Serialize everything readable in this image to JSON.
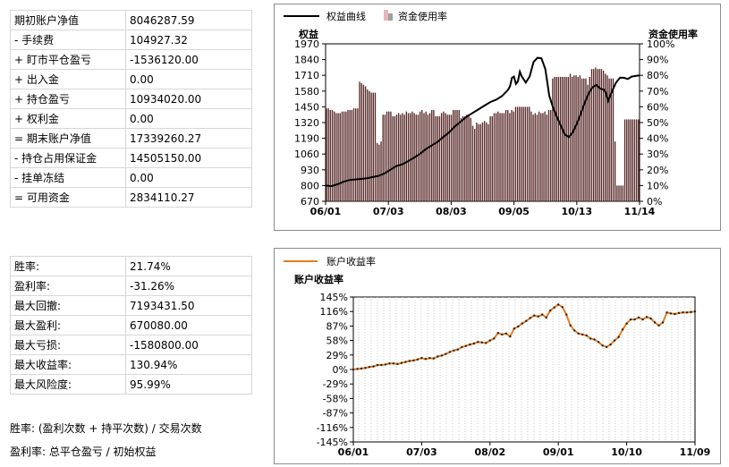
{
  "account_table": [
    {
      "label": "期初账户净值",
      "value": "8046287.59"
    },
    {
      "label": "- 手续费",
      "value": "104927.32"
    },
    {
      "label": "+ 盯市平仓盈亏",
      "value": "-1536120.00"
    },
    {
      "label": "+ 出入金",
      "value": "0.00"
    },
    {
      "label": "+ 持仓盈亏",
      "value": "10934020.00"
    },
    {
      "label": "+ 权利金",
      "value": "0.00"
    },
    {
      "label": "= 期末账户净值",
      "value": "17339260.27"
    },
    {
      "label": "- 持仓占用保证金",
      "value": "14505150.00"
    },
    {
      "label": "- 挂单冻结",
      "value": "0.00"
    },
    {
      "label": "= 可用资金",
      "value": "2834110.27"
    }
  ],
  "stats_table": [
    {
      "label": "胜率:",
      "value": "21.74%"
    },
    {
      "label": "盈利率:",
      "value": "-31.26%"
    },
    {
      "label": "最大回撤:",
      "value": "7193431.50"
    },
    {
      "label": "最大盈利:",
      "value": "670080.00"
    },
    {
      "label": "最大亏损:",
      "value": "-1580800.00"
    },
    {
      "label": "最大收益率:",
      "value": "130.94%"
    },
    {
      "label": "最大风险度:",
      "value": "95.99%"
    }
  ],
  "notes": {
    "win_rate_def": "胜率: (盈利次数 + 持平次数) / 交易次数",
    "profit_rate_def": "盈利率: 总平仓盈亏 / 初始权益"
  },
  "chart_data": [
    {
      "type": "line",
      "legend": [
        "权益曲线",
        "资金使用率"
      ],
      "ylabel": "权益",
      "y2label": "资金使用率",
      "x_ticks": [
        "06/01",
        "07/03",
        "08/03",
        "09/05",
        "10/13",
        "11/14"
      ],
      "y_ticks": [
        "670",
        "800",
        "930",
        "1060",
        "1190",
        "1320",
        "1450",
        "1580",
        "1710",
        "1840",
        "1970"
      ],
      "y_range": [
        670,
        1970
      ],
      "y2_ticks": [
        "0%",
        "10%",
        "20%",
        "30%",
        "40%",
        "50%",
        "60%",
        "70%",
        "80%",
        "90%",
        "100%"
      ],
      "y2_range": [
        0,
        100
      ],
      "series_line": {
        "name": "权益曲线",
        "color": "#000000",
        "points": [
          [
            0,
            800
          ],
          [
            3,
            795
          ],
          [
            6,
            810
          ],
          [
            9,
            830
          ],
          [
            12,
            845
          ],
          [
            15,
            850
          ],
          [
            18,
            855
          ],
          [
            21,
            860
          ],
          [
            24,
            870
          ],
          [
            27,
            880
          ],
          [
            30,
            900
          ],
          [
            33,
            930
          ],
          [
            36,
            960
          ],
          [
            39,
            975
          ],
          [
            42,
            1000
          ],
          [
            45,
            1030
          ],
          [
            48,
            1060
          ],
          [
            51,
            1100
          ],
          [
            54,
            1130
          ],
          [
            57,
            1160
          ],
          [
            60,
            1200
          ],
          [
            63,
            1240
          ],
          [
            66,
            1290
          ],
          [
            69,
            1330
          ],
          [
            72,
            1370
          ],
          [
            75,
            1400
          ],
          [
            78,
            1430
          ],
          [
            81,
            1460
          ],
          [
            84,
            1490
          ],
          [
            87,
            1510
          ],
          [
            90,
            1540
          ],
          [
            93,
            1590
          ],
          [
            94,
            1620
          ],
          [
            95,
            1690
          ],
          [
            96,
            1700
          ],
          [
            97,
            1640
          ],
          [
            98,
            1660
          ],
          [
            99,
            1740
          ],
          [
            100,
            1700
          ],
          [
            102,
            1650
          ],
          [
            104,
            1700
          ],
          [
            106,
            1820
          ],
          [
            108,
            1855
          ],
          [
            110,
            1850
          ],
          [
            112,
            1760
          ],
          [
            114,
            1540
          ],
          [
            116,
            1440
          ],
          [
            118,
            1360
          ],
          [
            120,
            1290
          ],
          [
            122,
            1220
          ],
          [
            124,
            1200
          ],
          [
            126,
            1240
          ],
          [
            128,
            1310
          ],
          [
            130,
            1390
          ],
          [
            132,
            1480
          ],
          [
            134,
            1560
          ],
          [
            136,
            1610
          ],
          [
            138,
            1630
          ],
          [
            140,
            1600
          ],
          [
            142,
            1590
          ],
          [
            143,
            1560
          ],
          [
            144,
            1500
          ],
          [
            146,
            1580
          ],
          [
            148,
            1650
          ],
          [
            150,
            1690
          ],
          [
            152,
            1690
          ],
          [
            154,
            1680
          ],
          [
            156,
            1700
          ],
          [
            158,
            1705
          ],
          [
            160,
            1710
          ]
        ]
      },
      "series_bars": {
        "name": "资金使用率",
        "color": "#5a2a2a",
        "unit": "%",
        "values": [
          59,
          59,
          58,
          58,
          57,
          56,
          56,
          56,
          57,
          57,
          57,
          58,
          58,
          58,
          59,
          59,
          59,
          76,
          75,
          74,
          73,
          71,
          70,
          69,
          69,
          69,
          37,
          36,
          38,
          55,
          55,
          57,
          57,
          57,
          54,
          54,
          55,
          56,
          55,
          56,
          55,
          57,
          56,
          56,
          57,
          56,
          55,
          55,
          57,
          58,
          56,
          57,
          55,
          56,
          58,
          58,
          54,
          54,
          54,
          56,
          57,
          56,
          55,
          55,
          55,
          58,
          58,
          58,
          58,
          53,
          54,
          54,
          55,
          55,
          53,
          48,
          46,
          50,
          49,
          49,
          50,
          51,
          50,
          49,
          54,
          54,
          56,
          56,
          57,
          56,
          56,
          56,
          58,
          58,
          56,
          58,
          57,
          60,
          60,
          60,
          60,
          60,
          60,
          60,
          60,
          57,
          55,
          56,
          55,
          57,
          56,
          56,
          57,
          55,
          58,
          58,
          78,
          79,
          79,
          79,
          79,
          79,
          79,
          79,
          79,
          81,
          79,
          80,
          80,
          79,
          80,
          78,
          78,
          78,
          74,
          79,
          84,
          84,
          85,
          84,
          84,
          84,
          83,
          81,
          80,
          78,
          78,
          78,
          38,
          10,
          10,
          10,
          10,
          52,
          52,
          52,
          52,
          52,
          52,
          52,
          52
        ]
      }
    },
    {
      "type": "line",
      "legend": [
        "账户收益率"
      ],
      "ylabel": "账户收益率",
      "x_ticks": [
        "06/01",
        "07/03",
        "08/02",
        "09/01",
        "10/10",
        "11/09"
      ],
      "y_ticks": [
        "145%",
        "116%",
        "87%",
        "58%",
        "29%",
        "0%",
        "-29%",
        "-58%",
        "-87%",
        "-116%",
        "-145%"
      ],
      "y_range": [
        -145,
        145
      ],
      "series": {
        "name": "账户收益率",
        "color": "#e87a1e",
        "marker_color": "#222222",
        "points": [
          [
            0,
            0
          ],
          [
            2,
            1
          ],
          [
            4,
            2
          ],
          [
            6,
            3
          ],
          [
            8,
            5
          ],
          [
            10,
            6
          ],
          [
            12,
            9
          ],
          [
            14,
            9
          ],
          [
            16,
            10
          ],
          [
            18,
            12
          ],
          [
            20,
            12
          ],
          [
            22,
            11
          ],
          [
            24,
            13
          ],
          [
            26,
            15
          ],
          [
            28,
            17
          ],
          [
            30,
            18
          ],
          [
            32,
            20
          ],
          [
            34,
            23
          ],
          [
            36,
            21
          ],
          [
            38,
            23
          ],
          [
            40,
            22
          ],
          [
            42,
            26
          ],
          [
            44,
            28
          ],
          [
            46,
            31
          ],
          [
            48,
            35
          ],
          [
            50,
            38
          ],
          [
            52,
            40
          ],
          [
            54,
            45
          ],
          [
            56,
            47
          ],
          [
            58,
            50
          ],
          [
            60,
            52
          ],
          [
            62,
            55
          ],
          [
            64,
            54
          ],
          [
            66,
            53
          ],
          [
            68,
            58
          ],
          [
            70,
            62
          ],
          [
            72,
            73
          ],
          [
            74,
            70
          ],
          [
            76,
            72
          ],
          [
            78,
            66
          ],
          [
            80,
            82
          ],
          [
            82,
            86
          ],
          [
            84,
            92
          ],
          [
            86,
            97
          ],
          [
            88,
            103
          ],
          [
            90,
            108
          ],
          [
            92,
            106
          ],
          [
            94,
            110
          ],
          [
            96,
            104
          ],
          [
            98,
            118
          ],
          [
            100,
            124
          ],
          [
            102,
            130
          ],
          [
            104,
            125
          ],
          [
            106,
            110
          ],
          [
            108,
            88
          ],
          [
            110,
            78
          ],
          [
            112,
            72
          ],
          [
            114,
            70
          ],
          [
            116,
            68
          ],
          [
            118,
            62
          ],
          [
            120,
            60
          ],
          [
            122,
            55
          ],
          [
            124,
            48
          ],
          [
            126,
            45
          ],
          [
            128,
            50
          ],
          [
            130,
            58
          ],
          [
            132,
            65
          ],
          [
            134,
            80
          ],
          [
            136,
            92
          ],
          [
            138,
            100
          ],
          [
            140,
            100
          ],
          [
            142,
            104
          ],
          [
            144,
            100
          ],
          [
            146,
            105
          ],
          [
            148,
            102
          ],
          [
            150,
            94
          ],
          [
            152,
            88
          ],
          [
            154,
            94
          ],
          [
            156,
            114
          ],
          [
            158,
            112
          ],
          [
            160,
            111
          ],
          [
            162,
            113
          ],
          [
            164,
            114
          ],
          [
            166,
            114
          ],
          [
            168,
            115
          ],
          [
            170,
            116
          ]
        ]
      }
    }
  ]
}
